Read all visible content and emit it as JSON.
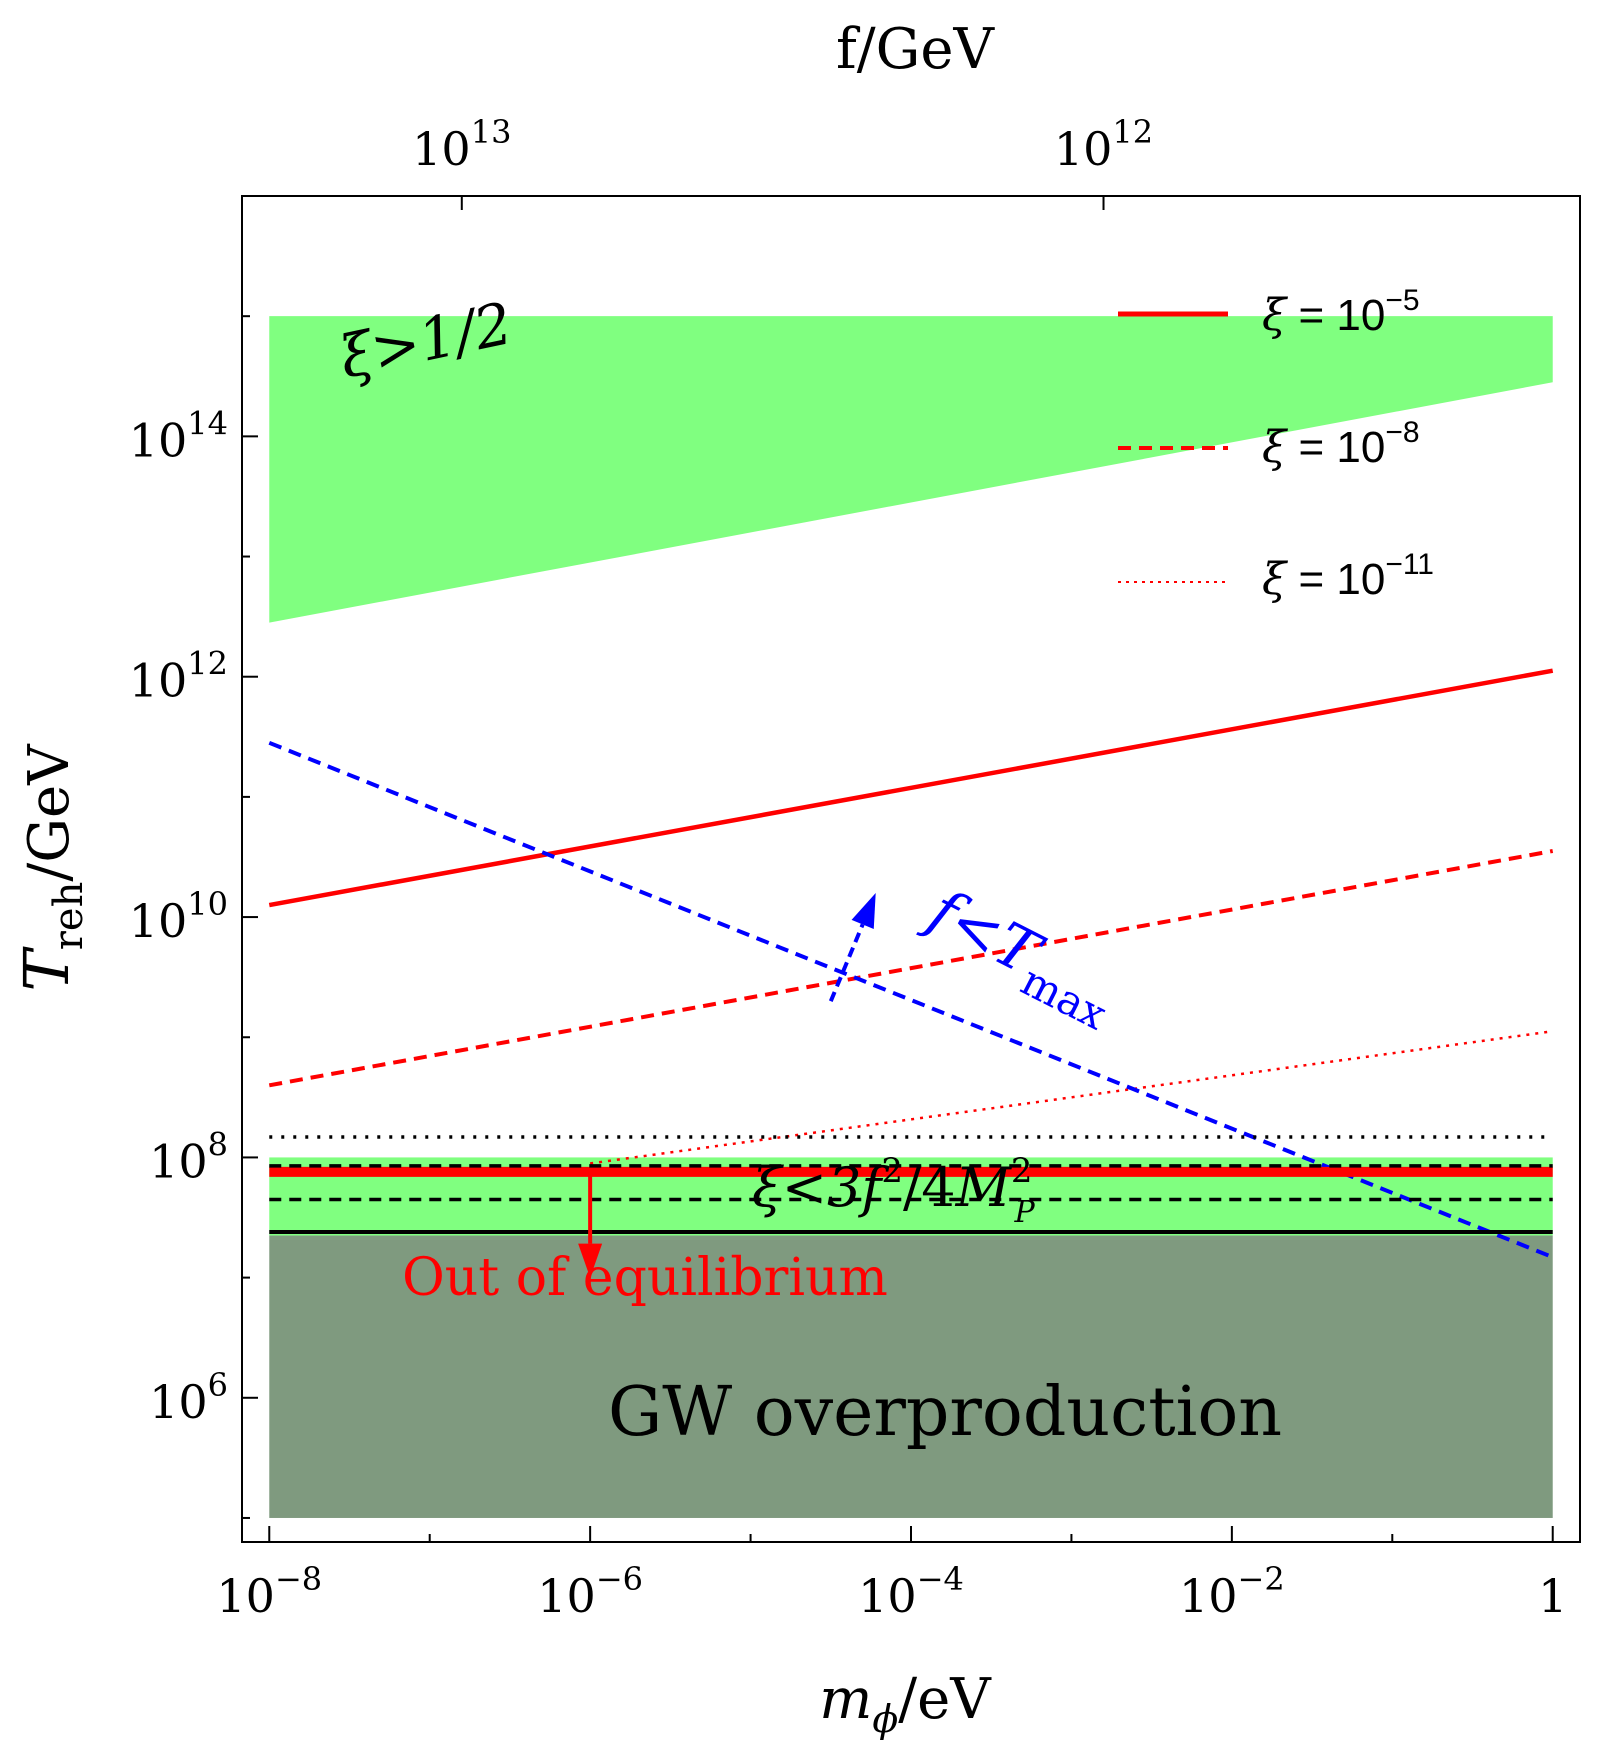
{
  "colors": {
    "green_region": "#80ff80",
    "gw_region": "#7f9a7f",
    "red": "#ff0000",
    "blue": "#0000ff",
    "black": "#000000"
  },
  "chart_data": {
    "type": "line",
    "x_axis": {
      "label_main": "m",
      "label_sub": "ϕ",
      "label_unit": "/eV",
      "scale": "log",
      "range_log10": [
        -8.17,
        0.17
      ],
      "ticks": [
        {
          "log": -8,
          "base": "10",
          "exp": "−8"
        },
        {
          "log": -6,
          "base": "10",
          "exp": "−6"
        },
        {
          "log": -4,
          "base": "10",
          "exp": "−4"
        },
        {
          "log": -2,
          "base": "10",
          "exp": "−2"
        },
        {
          "log": 0,
          "base": "1",
          "exp": ""
        }
      ]
    },
    "y_axis": {
      "label_main": "T",
      "label_sub": "reh",
      "label_unit": "/GeV",
      "scale": "log",
      "range_log10": [
        4.8,
        16.0
      ],
      "ticks": [
        {
          "log": 6,
          "base": "10",
          "exp": "6"
        },
        {
          "log": 8,
          "base": "10",
          "exp": "8"
        },
        {
          "log": 10,
          "base": "10",
          "exp": "10"
        },
        {
          "log": 12,
          "base": "10",
          "exp": "12"
        },
        {
          "log": 14,
          "base": "10",
          "exp": "14"
        }
      ]
    },
    "top_axis": {
      "label": "f/GeV",
      "ticks": [
        {
          "x_log": -6.8,
          "base": "10",
          "exp": "13"
        },
        {
          "x_log": -2.8,
          "base": "10",
          "exp": "12"
        }
      ]
    },
    "regions": [
      {
        "name": "xi-gt-half",
        "label": "ξ>1/2",
        "x_log": [
          -8,
          0
        ],
        "y_lower_log": [
          12.45,
          14.45
        ],
        "y_upper_log": 15.0,
        "color": "#80ff80"
      },
      {
        "name": "xi-lt-bound",
        "label": "ξ<3f²/4M²ₚ",
        "label_parts": {
          "xi": "ξ<3",
          "f": "f",
          "f_sup": "2",
          "mid": "/4",
          "M": "M",
          "M_sup": "2",
          "M_sub": "P"
        },
        "x_log": [
          -8,
          0
        ],
        "y_log": [
          7.35,
          8.0
        ],
        "color": "#80ff80"
      },
      {
        "name": "gw-overproduction",
        "label": "GW overproduction",
        "x_log": [
          -8,
          0
        ],
        "y_log": [
          5.0,
          7.35
        ],
        "color": "#7f9a7f"
      }
    ],
    "series": [
      {
        "name": "xi = 1e-5",
        "style": "solid",
        "color": "#ff0000",
        "x_log": [
          -8,
          0
        ],
        "y_log": [
          10.1,
          12.05
        ]
      },
      {
        "name": "xi = 1e-8",
        "style": "dashed",
        "color": "#ff0000",
        "x_log": [
          -8,
          0
        ],
        "y_log": [
          8.6,
          10.55
        ]
      },
      {
        "name": "xi = 1e-11",
        "style": "dotted",
        "color": "#ff0000",
        "x_log": [
          -6,
          0
        ],
        "y_log": [
          7.95,
          9.05
        ]
      },
      {
        "name": "f < T_max",
        "style": "dashed",
        "color": "#0000ff",
        "x_log": [
          -8,
          0
        ],
        "y_log": [
          11.45,
          7.17
        ]
      },
      {
        "name": "equilibrium boundary",
        "style": "thick",
        "color": "#ff0000",
        "x_log": [
          -8,
          0
        ],
        "y_log": [
          7.88,
          7.88
        ]
      },
      {
        "name": "black dotted",
        "style": "dotted",
        "color": "#000000",
        "x_log": [
          -8,
          0
        ],
        "y_log": [
          8.17,
          8.17
        ]
      },
      {
        "name": "black dashed upper",
        "style": "dashed",
        "color": "#000000",
        "x_log": [
          -8,
          0
        ],
        "y_log": [
          7.93,
          7.93
        ]
      },
      {
        "name": "black dashed lower",
        "style": "dashed",
        "color": "#000000",
        "x_log": [
          -8,
          0
        ],
        "y_log": [
          7.65,
          7.65
        ]
      },
      {
        "name": "black solid",
        "style": "solid",
        "color": "#000000",
        "x_log": [
          -8,
          0
        ],
        "y_log": [
          7.38,
          7.38
        ]
      }
    ],
    "legend": {
      "position": "top-right",
      "entries": [
        {
          "style": "solid",
          "xi": "ξ",
          "eq": " = 10",
          "exp": "−5"
        },
        {
          "style": "dashed",
          "xi": "ξ",
          "eq": " = 10",
          "exp": "−8"
        },
        {
          "style": "dotted",
          "xi": "ξ",
          "eq": " = 10",
          "exp": "−11"
        }
      ]
    },
    "annotations": {
      "xi_half": "ξ>1/2",
      "f_lt_tmax_main": "f<T",
      "f_lt_tmax_sub": "max",
      "out_of_equilibrium": "Out of equilibrium",
      "gw_overproduction": "GW overproduction"
    },
    "arrows": [
      {
        "name": "blue-arrow",
        "color": "#0000ff",
        "from_log": [
          -4.5,
          9.3
        ],
        "to_log": [
          -4.22,
          10.2
        ]
      },
      {
        "name": "red-arrow",
        "color": "#ff0000",
        "from_log": [
          -6,
          7.88
        ],
        "to_log": [
          -6,
          7.0
        ]
      }
    ]
  }
}
